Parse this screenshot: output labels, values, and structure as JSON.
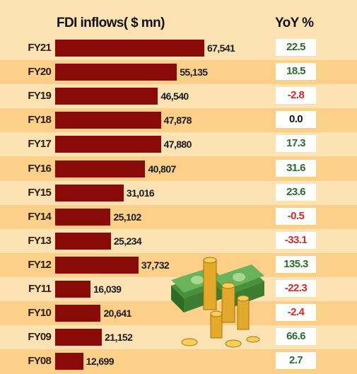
{
  "header": {
    "title": "FDI inflows( $ mn)",
    "yoy_title": "YoY %"
  },
  "chart_data": {
    "type": "bar",
    "orientation": "horizontal",
    "title": "FDI inflows( $ mn)",
    "categories": [
      "FY21",
      "FY20",
      "FY19",
      "FY18",
      "FY17",
      "FY16",
      "FY15",
      "FY14",
      "FY13",
      "FY12",
      "FY11",
      "FY10",
      "FY09",
      "FY08"
    ],
    "values": [
      67541,
      55135,
      46540,
      47878,
      47880,
      40807,
      31016,
      25102,
      25234,
      37732,
      16039,
      20641,
      21152,
      12699
    ],
    "value_labels": [
      "67,541",
      "55,135",
      "46,540",
      "47,878",
      "47,880",
      "40,807",
      "31,016",
      "25,102",
      "25,234",
      "37,732",
      "16,039",
      "20,641",
      "21,152",
      "12,699"
    ],
    "yoy_title": "YoY %",
    "yoy": [
      "22.5",
      "18.5",
      "-2.8",
      "0.0",
      "17.3",
      "31.6",
      "23.6",
      "-0.5",
      "-33.1",
      "135.3",
      "-22.3",
      "-2.4",
      "66.6",
      "2.7"
    ],
    "bar_color": "#8a0a0a",
    "positive_color": "#2d6b2d",
    "negative_color": "#d42a2a",
    "neutral_color": "#111111"
  },
  "decoration": {
    "icon": "money-stack-coins-icon"
  }
}
